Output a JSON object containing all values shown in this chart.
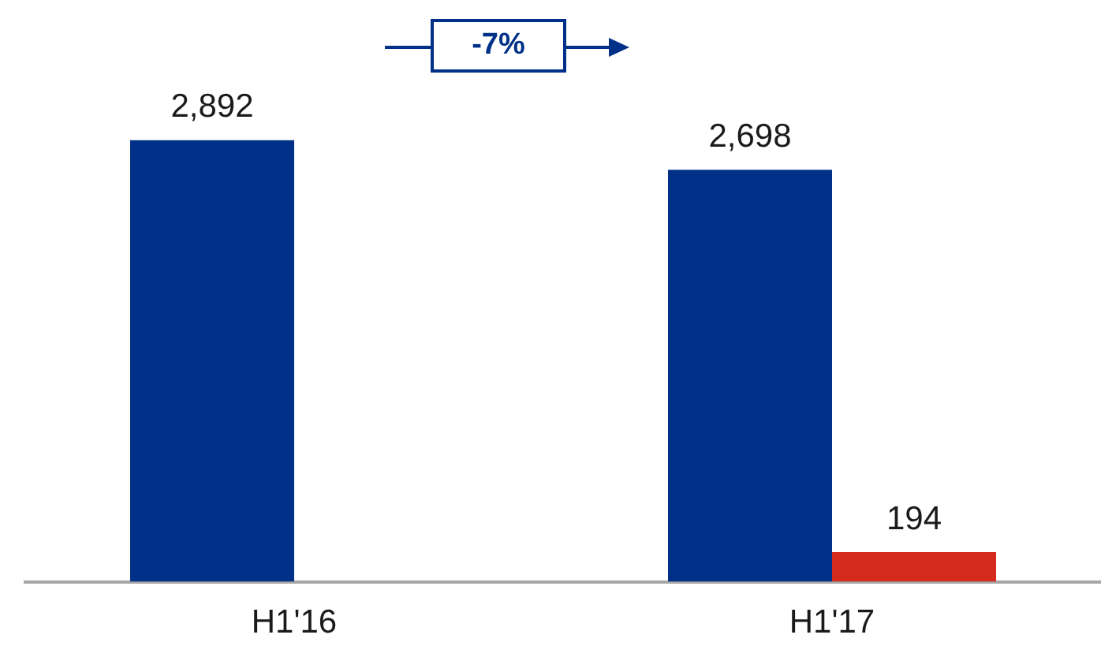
{
  "chart_data": {
    "type": "bar",
    "categories": [
      "H1'16",
      "H1'17"
    ],
    "series": [
      {
        "color": "#003087",
        "values": [
          2892,
          2698
        ],
        "value_labels": [
          "2,892",
          "2,698"
        ]
      },
      {
        "color": "#d52b1e",
        "values": [
          null,
          194
        ],
        "value_labels": [
          null,
          "194"
        ]
      }
    ],
    "annotations": [
      "-7%"
    ],
    "grid": false,
    "legend": false,
    "tick_labels": "x"
  }
}
